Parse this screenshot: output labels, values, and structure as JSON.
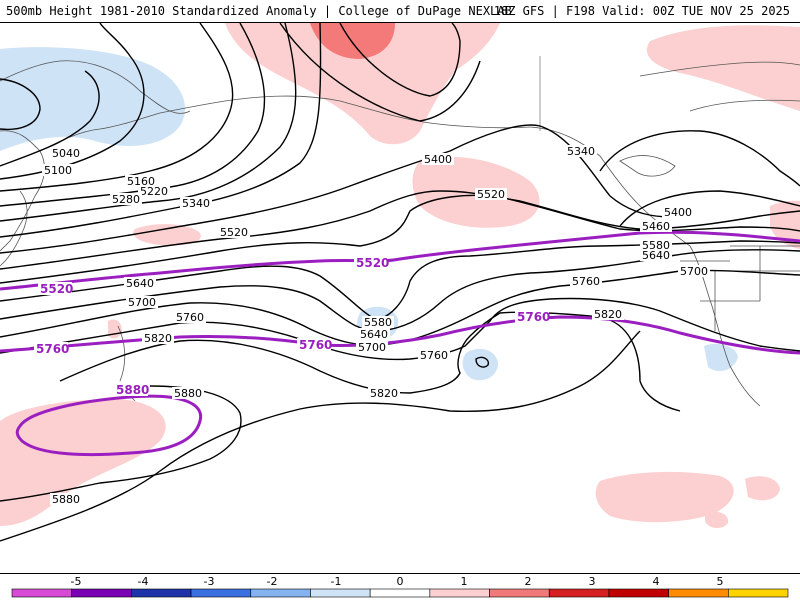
{
  "header": {
    "title_left": "500mb Height 1981-2010 Standardized Anomaly | College of DuPage NEXLAB",
    "title_right": "18Z GFS | F198 Valid: 00Z TUE NOV 25 2025"
  },
  "colors": {
    "contour": "#000000",
    "highlight_contour": "#9b1fc0",
    "coast": "#555555",
    "pos1": "#fcd0d0",
    "pos2": "#f47a7a",
    "neg1": "#cfe3f7"
  },
  "contour_labels": [
    "5040",
    "5100",
    "5160",
    "5220",
    "5280",
    "5340",
    "5400",
    "5460",
    "5520",
    "5580",
    "5640",
    "5700",
    "5760",
    "5820",
    "5880"
  ],
  "highlight_labels": [
    "5520",
    "5760",
    "5880"
  ],
  "legend": {
    "ticks": [
      "-5",
      "-4",
      "-3",
      "-2",
      "-1",
      "0",
      "1",
      "2",
      "3",
      "4",
      "5"
    ],
    "colors": [
      "#d64ad6",
      "#7a00b3",
      "#1f33a8",
      "#3a6fe0",
      "#86b2ef",
      "#cfe3f7",
      "#ffffff",
      "#fcd0d0",
      "#f07a7a",
      "#d42020",
      "#c00000",
      "#ff8c00",
      "#ffd300"
    ]
  }
}
